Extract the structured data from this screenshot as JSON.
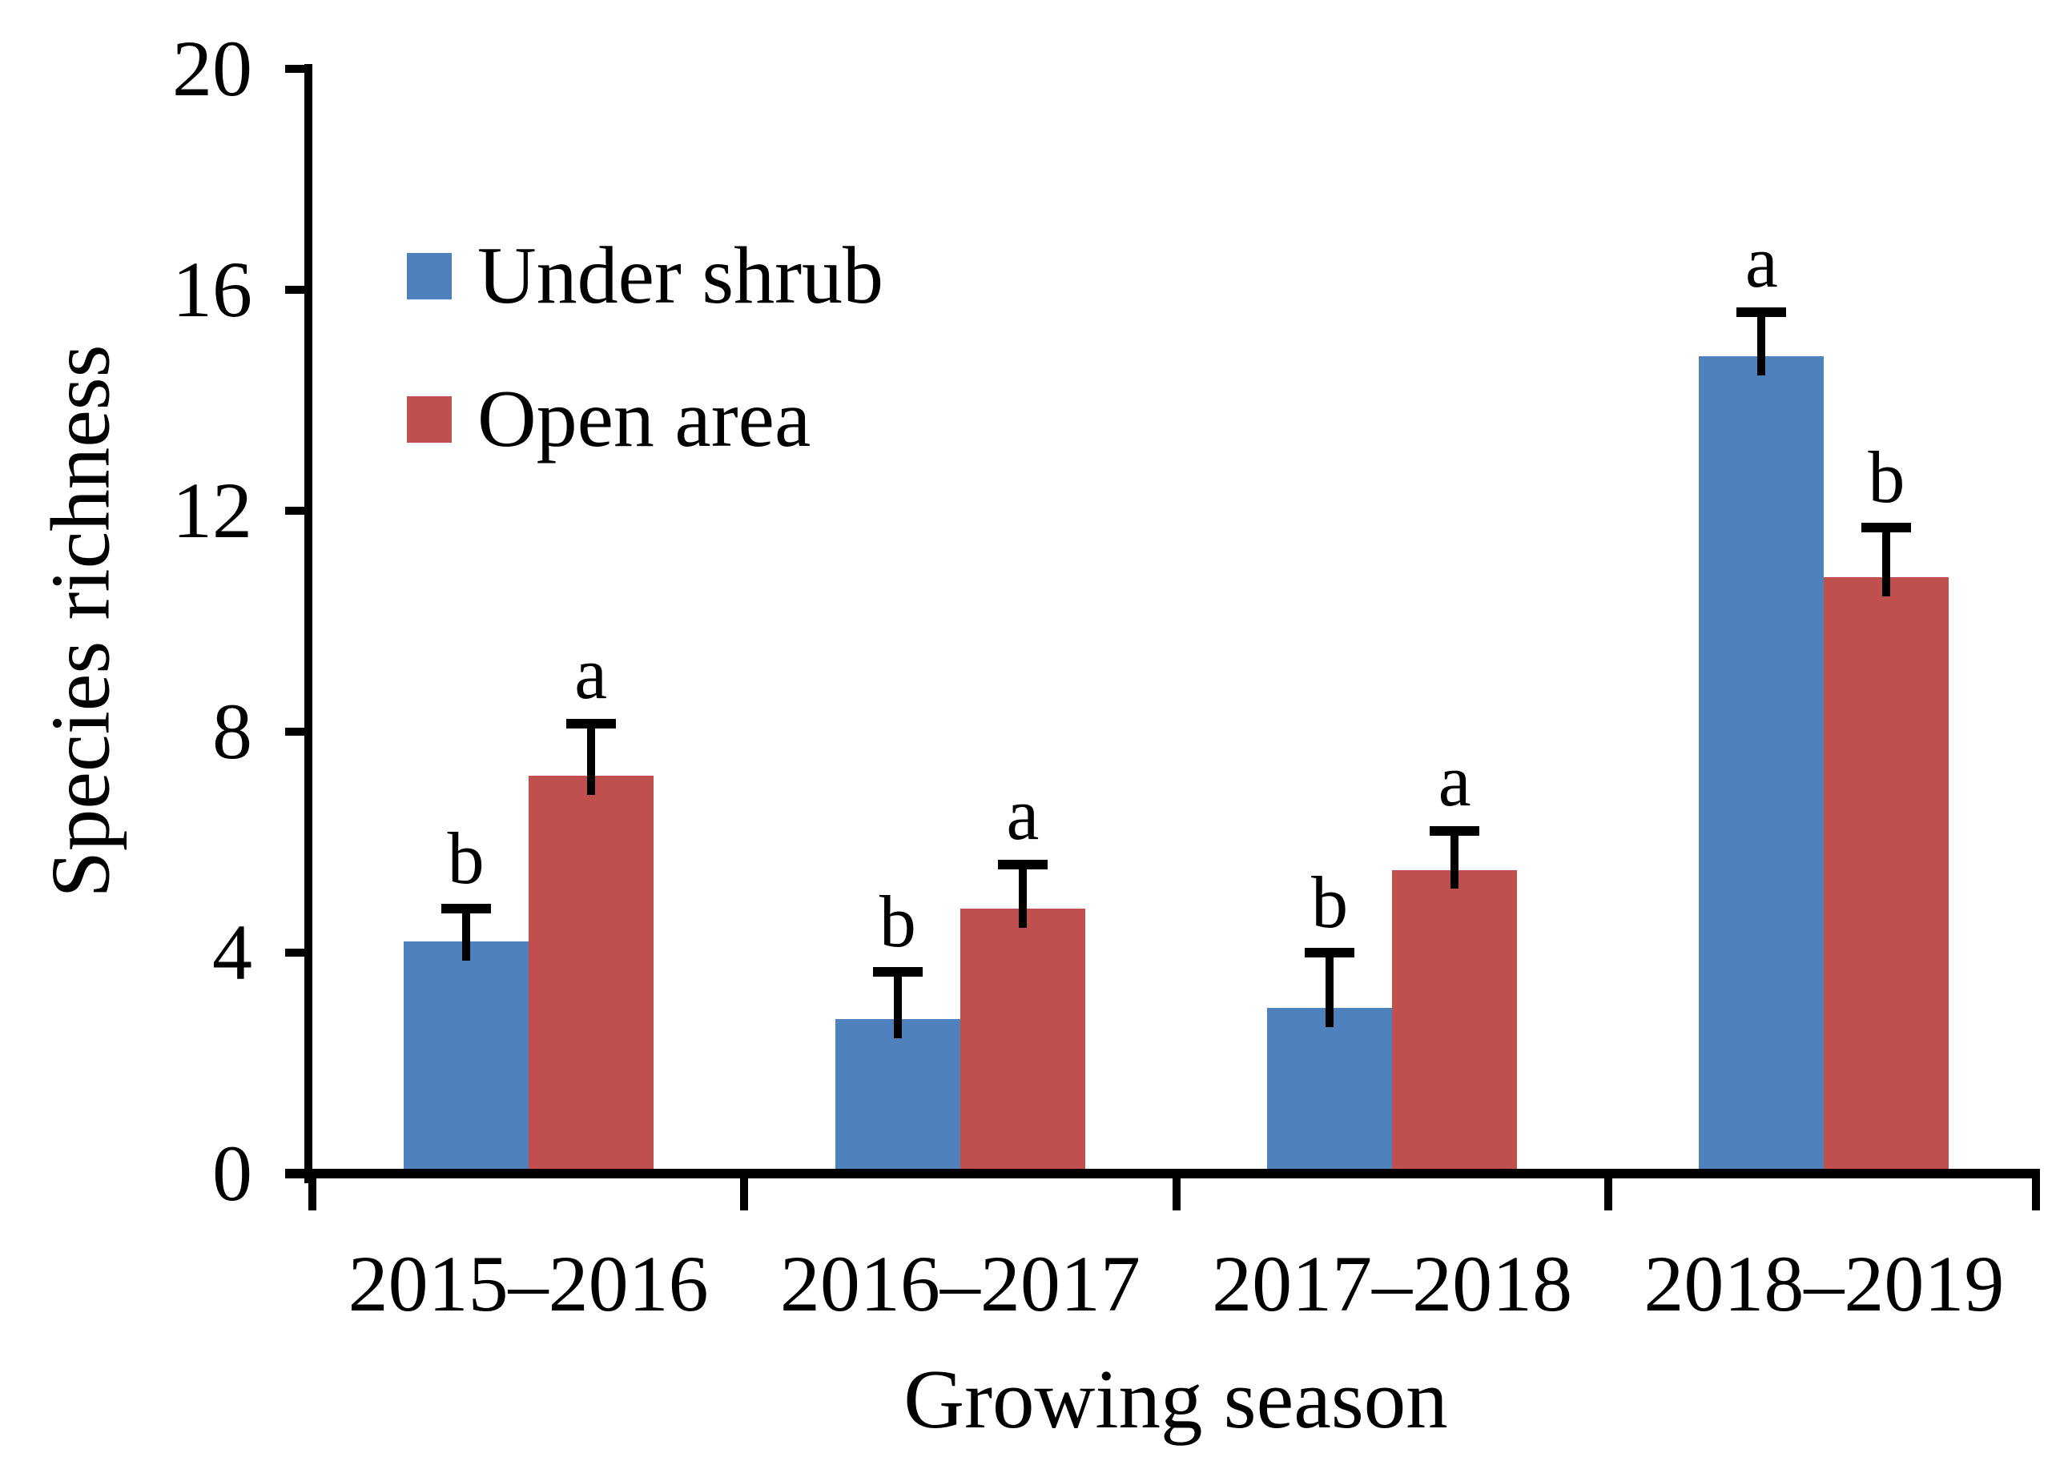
{
  "chart_data": {
    "type": "bar",
    "title": "",
    "categories": [
      "2015–2016",
      "2016–2017",
      "2017–2018",
      "2018–2019"
    ],
    "series": [
      {
        "name": "Under shrub",
        "color": "#4F81BD",
        "values": [
          4.2,
          2.8,
          3.0,
          14.8
        ],
        "errors_plus": [
          0.6,
          0.85,
          1.0,
          0.8
        ],
        "sig_letters": [
          "b",
          "b",
          "b",
          "a"
        ]
      },
      {
        "name": "Open area",
        "color": "#C0504D",
        "values": [
          7.2,
          4.8,
          5.5,
          10.8
        ],
        "errors_plus": [
          0.95,
          0.8,
          0.7,
          0.9
        ],
        "sig_letters": [
          "a",
          "a",
          "a",
          "b"
        ]
      }
    ],
    "xlabel": "Growing season",
    "ylabel": "Species richness",
    "ylim": [
      0,
      20
    ],
    "yticks": [
      0,
      4,
      8,
      12,
      16,
      20
    ],
    "grid": false,
    "legend_position": "upper left inside plot",
    "error_bars": "upper caps only"
  }
}
